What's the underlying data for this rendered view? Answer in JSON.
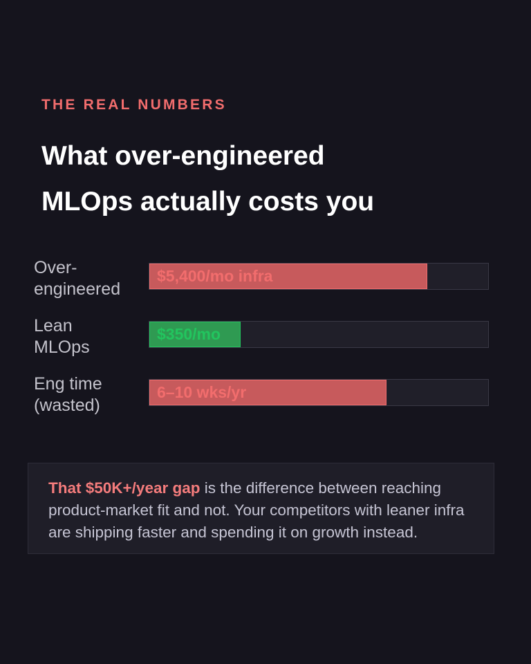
{
  "eyebrow": "THE REAL NUMBERS",
  "title": [
    "What over-engineered",
    "MLOps actually costs you"
  ],
  "rows": [
    {
      "label": [
        "Over-",
        "engineered"
      ],
      "value_label": "$5,400/mo infra",
      "percent": 82,
      "color": "#c75a5c",
      "text_color": "#f26d6d"
    },
    {
      "label": [
        "Lean",
        "MLOps"
      ],
      "value_label": "$350/mo",
      "percent": 27,
      "color": "#2f9a52",
      "text_color": "#22c55e"
    },
    {
      "label": [
        "Eng time",
        "(wasted)"
      ],
      "value_label": "6–10 wks/yr",
      "percent": 70,
      "color": "#c75a5c",
      "text_color": "#f26d6d"
    }
  ],
  "callout": {
    "highlight": "That $50K+/year gap",
    "text": " is the difference between reaching product-market fit and not. Your competitors with leaner infra are shipping faster and spending it on growth instead."
  }
}
